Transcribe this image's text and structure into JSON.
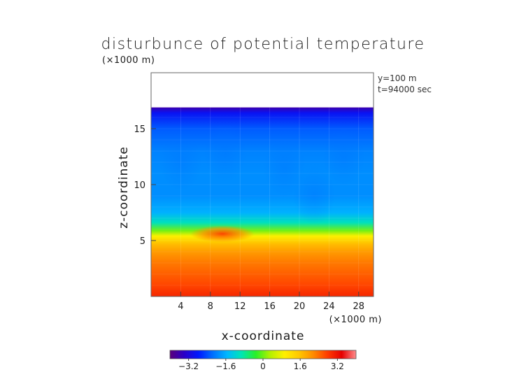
{
  "chart_data": {
    "type": "heatmap",
    "title": "disturbunce of potential temperature",
    "xlabel": "x-coordinate",
    "ylabel": "z-coordinate",
    "x_unit": "(×1000 m)",
    "z_unit": "(×1000 m)",
    "annotations": [
      "y=100 m",
      "t=94000 sec"
    ],
    "x_ticks": [
      4,
      8,
      12,
      16,
      20,
      24,
      28
    ],
    "z_ticks": [
      5,
      10,
      15
    ],
    "xlim": [
      0,
      30
    ],
    "zlim": [
      0,
      20
    ],
    "colorbar": {
      "range": [
        -4,
        4
      ],
      "ticks": [
        -3.2,
        -1.6,
        0,
        1.6,
        3.2
      ],
      "tick_labels": [
        "−3.2",
        "−1.6",
        "0",
        "1.6",
        "3.2"
      ],
      "colormap": [
        "#5a007a",
        "#2a00c8",
        "#0018ff",
        "#0070ff",
        "#00b8ff",
        "#00e6b4",
        "#28f028",
        "#b4f000",
        "#fff000",
        "#ffc800",
        "#ff8c00",
        "#ff3c00",
        "#e60000",
        "#ff8c8c"
      ]
    },
    "field_profile": {
      "z": [
        0,
        1,
        2,
        3,
        4,
        4.6,
        5.4,
        5.9,
        6.6,
        7.5,
        9,
        11,
        13,
        15,
        16.4,
        16.9,
        20
      ],
      "value": [
        3.0,
        2.7,
        2.5,
        2.3,
        2.0,
        1.7,
        0.9,
        0.0,
        -1.0,
        -1.6,
        -1.9,
        -1.9,
        -2.0,
        -2.3,
        -2.9,
        -3.6,
        null
      ],
      "top_of_data_z": 16.9
    },
    "features": [
      {
        "label": "warm anomaly",
        "x": 9.6,
        "z": 5.6,
        "value": 3.0
      }
    ]
  }
}
